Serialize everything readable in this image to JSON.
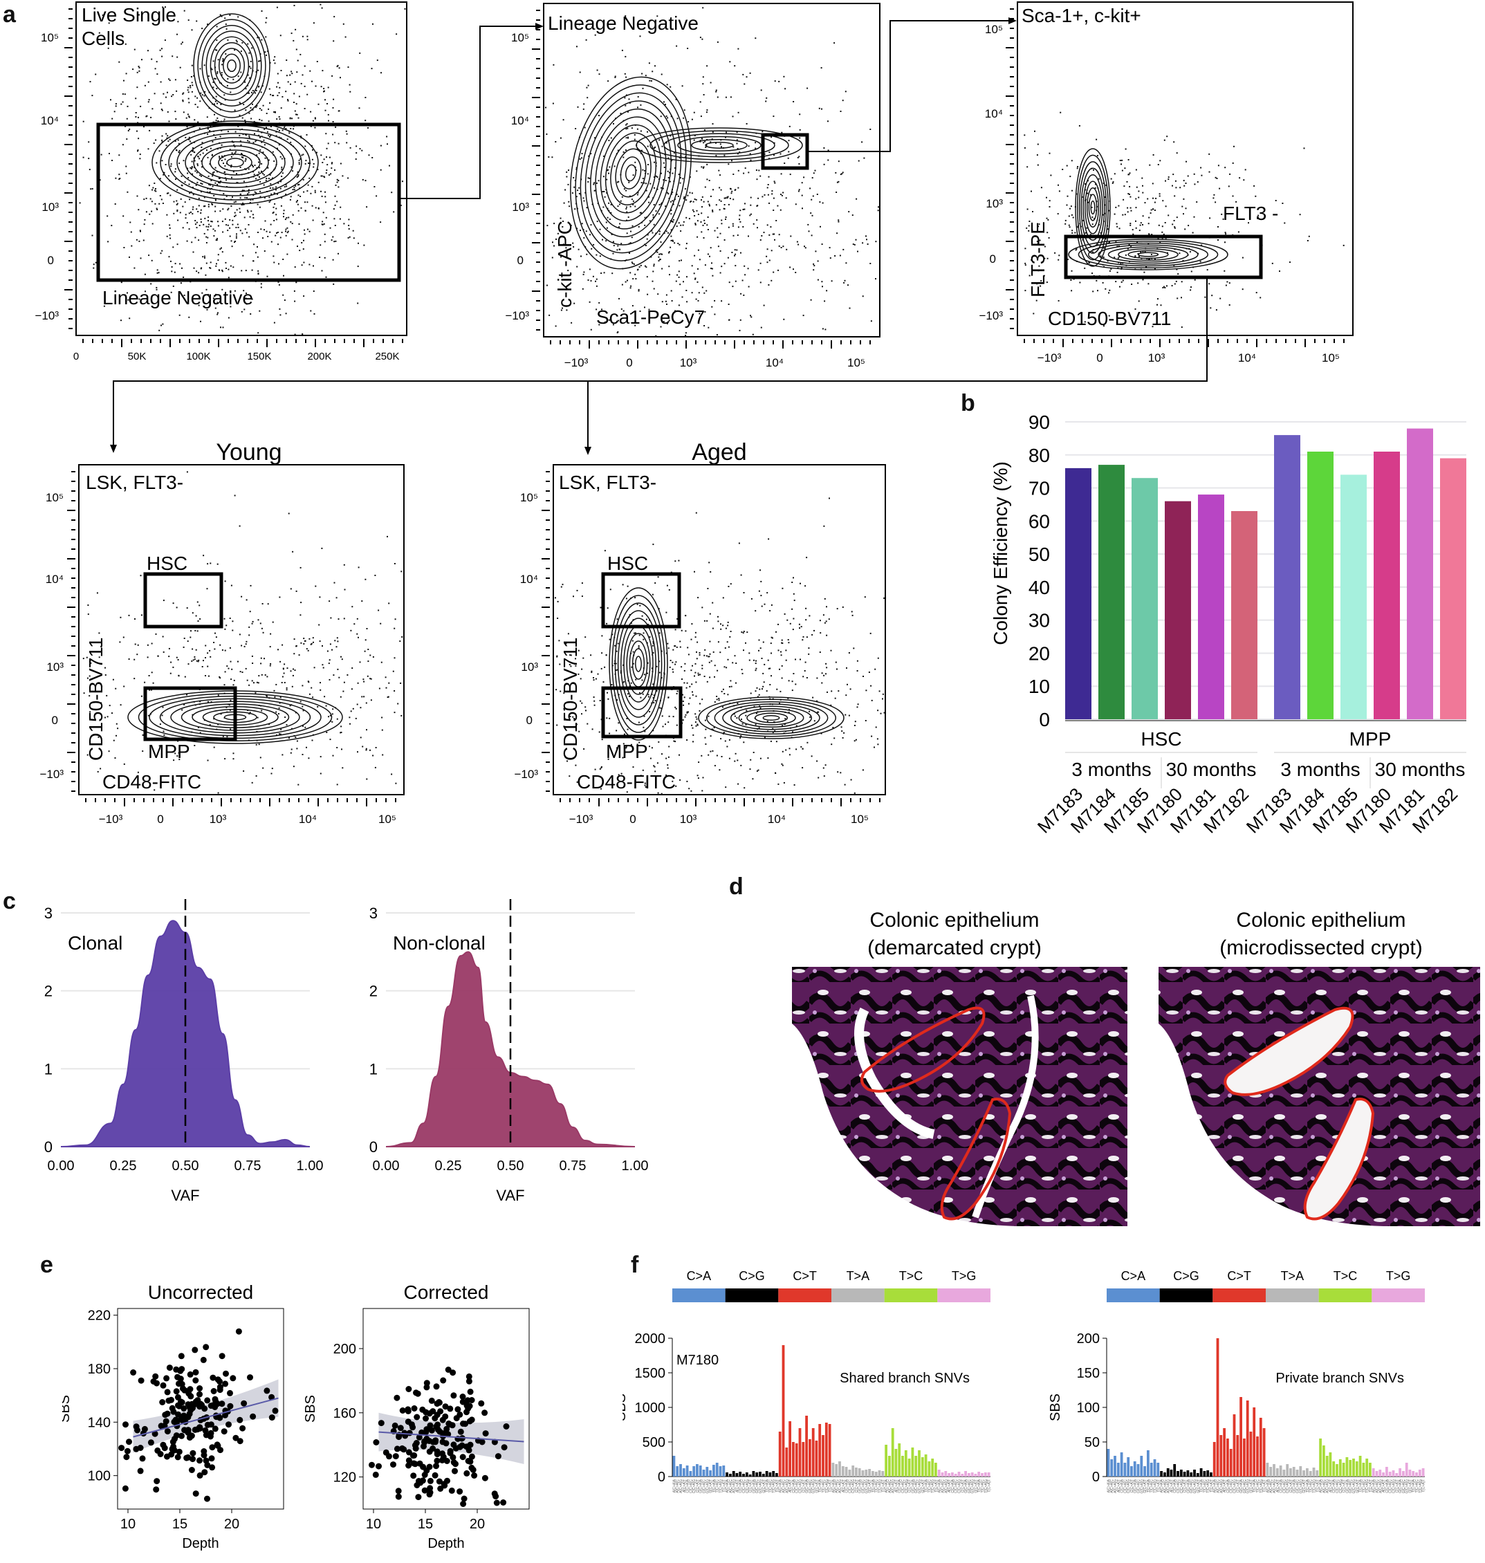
{
  "panel_letters": [
    "a",
    "b",
    "c",
    "d",
    "e",
    "f"
  ],
  "panel_a": {
    "plots": [
      {
        "gate_title": "Live Single\nCells",
        "gate_label": "Lineage Negative",
        "x_ticks": [
          "0",
          "50K",
          "100K",
          "150K",
          "200K",
          "250K"
        ],
        "y_ticks": [
          "10⁵",
          "10⁴",
          "10³",
          "0",
          "−10³"
        ]
      },
      {
        "gate_title": "Lineage Negative",
        "xlabel": "Sca1-PeCy7",
        "ylabel": "c-kit -APC",
        "x_ticks": [
          "−10³",
          "0",
          "10³",
          "10⁴",
          "10⁵"
        ],
        "y_ticks": [
          "10⁵",
          "10⁴",
          "10³",
          "0",
          "−10³"
        ]
      },
      {
        "gate_title": "Sca-1+, c-kit+",
        "gate_label": "FLT3 -",
        "xlabel": "CD150-BV711",
        "ylabel": "FLT3-PE",
        "x_ticks": [
          "−10³",
          "0",
          "10³",
          "10⁴",
          "10⁵"
        ],
        "y_ticks": [
          "10⁵",
          "10⁴",
          "10³",
          "0",
          "−10³"
        ]
      },
      {
        "title": "Young",
        "gate_title": "LSK, FLT3-",
        "hsc": "HSC",
        "mpp": "MPP",
        "xlabel": "CD48-FITC",
        "ylabel": "CD150-BV711",
        "x_ticks": [
          "−10³",
          "0",
          "10³",
          "10⁴",
          "10⁵"
        ],
        "y_ticks": [
          "10⁵",
          "10⁴",
          "10³",
          "0",
          "−10³"
        ]
      },
      {
        "title": "Aged",
        "gate_title": "LSK, FLT3-",
        "hsc": "HSC",
        "mpp": "MPP",
        "xlabel": "CD48-FITC",
        "ylabel": "CD150-BV711",
        "x_ticks": [
          "−10³",
          "0",
          "10³",
          "10⁴",
          "10⁵"
        ],
        "y_ticks": [
          "10⁵",
          "10⁴",
          "10³",
          "0",
          "−10³"
        ]
      }
    ]
  },
  "chart_data": [
    {
      "panel": "b",
      "type": "bar",
      "ylabel": "Colony Efficiency (%)",
      "ylim": [
        0,
        90
      ],
      "y_ticks": [
        0,
        10,
        20,
        30,
        40,
        50,
        60,
        70,
        80,
        90
      ],
      "grid": true,
      "categories": [
        "M7183",
        "M7184",
        "M7185",
        "M7180",
        "M7181",
        "M7182",
        "M7183",
        "M7184",
        "M7185",
        "M7180",
        "M7181",
        "M7182"
      ],
      "values": [
        76,
        77,
        73,
        66,
        68,
        63,
        86,
        81,
        74,
        81,
        88,
        79
      ],
      "colors": [
        "#3e2a93",
        "#2e8b3e",
        "#6dc9a8",
        "#8f2357",
        "#b845c4",
        "#d46378",
        "#6b5cc0",
        "#5dd63a",
        "#a6f0dd",
        "#d63c8a",
        "#d36bc9",
        "#f07898"
      ],
      "groups": [
        {
          "label": "HSC",
          "subgroups": [
            "3 months",
            "30 months"
          ]
        },
        {
          "label": "MPP",
          "subgroups": [
            "3 months",
            "30 months"
          ]
        }
      ]
    },
    {
      "panel": "c-left",
      "type": "area",
      "label": "Clonal",
      "xlabel": "VAF",
      "xlim": [
        0,
        1
      ],
      "ylim": [
        0,
        3
      ],
      "x_ticks": [
        "0.00",
        "0.25",
        "0.50",
        "0.75",
        "1.00"
      ],
      "y_ticks": [
        "0",
        "1",
        "2",
        "3"
      ],
      "vline": 0.5,
      "color": "#5b3ea6",
      "x": [
        0.0,
        0.1,
        0.2,
        0.25,
        0.3,
        0.35,
        0.4,
        0.45,
        0.5,
        0.55,
        0.6,
        0.65,
        0.7,
        0.75,
        0.8,
        0.85,
        0.9,
        0.95,
        1.0
      ],
      "y": [
        0.0,
        0.02,
        0.3,
        0.8,
        1.5,
        2.2,
        2.7,
        2.9,
        2.75,
        2.3,
        2.15,
        1.45,
        0.6,
        0.15,
        0.04,
        0.06,
        0.09,
        0.02,
        0.0
      ]
    },
    {
      "panel": "c-right",
      "type": "area",
      "label": "Non-clonal",
      "xlabel": "VAF",
      "xlim": [
        0,
        1
      ],
      "ylim": [
        0,
        3
      ],
      "x_ticks": [
        "0.00",
        "0.25",
        "0.50",
        "0.75",
        "1.00"
      ],
      "y_ticks": [
        "0",
        "1",
        "2",
        "3"
      ],
      "vline": 0.5,
      "color": "#9a3a66",
      "x": [
        0.0,
        0.1,
        0.15,
        0.2,
        0.25,
        0.3,
        0.33,
        0.37,
        0.4,
        0.45,
        0.5,
        0.55,
        0.6,
        0.65,
        0.7,
        0.75,
        0.8,
        0.85,
        1.0
      ],
      "y": [
        0.0,
        0.05,
        0.3,
        0.9,
        1.8,
        2.45,
        2.5,
        2.3,
        1.6,
        1.15,
        0.95,
        0.9,
        0.85,
        0.8,
        0.55,
        0.25,
        0.08,
        0.03,
        0.0
      ]
    },
    {
      "panel": "e-left",
      "type": "scatter",
      "title": "Uncorrected",
      "xlabel": "Depth",
      "ylabel": "SBS",
      "xlim": [
        9,
        25
      ],
      "ylim": [
        75,
        225
      ],
      "x_ticks": [
        10,
        15,
        20
      ],
      "y_ticks": [
        100,
        140,
        180,
        220
      ],
      "trend": [
        [
          10.5,
          129
        ],
        [
          24.5,
          158
        ]
      ]
    },
    {
      "panel": "e-right",
      "type": "scatter",
      "title": "Corrected",
      "xlabel": "Depth",
      "ylabel": "SBS",
      "xlim": [
        9,
        25
      ],
      "ylim": [
        100,
        225
      ],
      "x_ticks": [
        10,
        15,
        20
      ],
      "y_ticks": [
        120,
        160,
        200
      ],
      "trend": [
        [
          10.5,
          148
        ],
        [
          24.5,
          142
        ]
      ]
    },
    {
      "panel": "f-left",
      "type": "bar",
      "sample": "M7180",
      "label": "Shared branch SNVs",
      "ylabel": "SBS",
      "ylim": [
        0,
        2000
      ],
      "y_ticks": [
        0,
        500,
        1000,
        1500,
        2000
      ],
      "classes": [
        "C>A",
        "C>G",
        "C>T",
        "T>A",
        "T>C",
        "T>G"
      ],
      "class_colors": [
        "#5b8fd1",
        "#000000",
        "#e0382b",
        "#b8b8b8",
        "#a8dd3a",
        "#e8a8dd"
      ],
      "values": [
        300,
        150,
        180,
        120,
        160,
        80,
        150,
        180,
        160,
        100,
        140,
        90,
        170,
        200,
        150,
        160,
        60,
        40,
        80,
        50,
        70,
        40,
        60,
        30,
        80,
        60,
        70,
        40,
        80,
        60,
        80,
        50,
        650,
        1900,
        420,
        800,
        500,
        480,
        700,
        500,
        880,
        540,
        700,
        520,
        760,
        600,
        780,
        760,
        200,
        180,
        220,
        150,
        140,
        100,
        160,
        130,
        120,
        90,
        100,
        110,
        80,
        70,
        90,
        80,
        460,
        300,
        700,
        400,
        480,
        300,
        380,
        260,
        420,
        300,
        380,
        280,
        320,
        220,
        260,
        200,
        100,
        60,
        80,
        50,
        60,
        40,
        70,
        40,
        80,
        50,
        60,
        40,
        70,
        50,
        60,
        60
      ]
    },
    {
      "panel": "f-right",
      "type": "bar",
      "label": "Private branch SNVs",
      "ylabel": "SBS",
      "ylim": [
        0,
        200
      ],
      "y_ticks": [
        0,
        50,
        100,
        150,
        200
      ],
      "classes": [
        "C>A",
        "C>G",
        "C>T",
        "T>A",
        "T>C",
        "T>G"
      ],
      "class_colors": [
        "#5b8fd1",
        "#000000",
        "#e0382b",
        "#b8b8b8",
        "#a8dd3a",
        "#e8a8dd"
      ],
      "values": [
        40,
        25,
        30,
        20,
        35,
        20,
        28,
        15,
        22,
        18,
        30,
        15,
        38,
        20,
        25,
        20,
        8,
        6,
        12,
        10,
        18,
        8,
        10,
        7,
        9,
        6,
        10,
        5,
        12,
        8,
        9,
        6,
        50,
        200,
        60,
        70,
        55,
        40,
        90,
        60,
        115,
        55,
        110,
        65,
        100,
        58,
        85,
        70,
        20,
        14,
        18,
        12,
        16,
        10,
        18,
        12,
        14,
        10,
        15,
        9,
        12,
        8,
        13,
        9,
        55,
        45,
        30,
        35,
        22,
        18,
        25,
        20,
        28,
        24,
        26,
        22,
        30,
        20,
        26,
        20,
        12,
        8,
        10,
        6,
        14,
        7,
        9,
        5,
        12,
        8,
        20,
        10,
        8,
        6,
        10,
        12
      ]
    }
  ],
  "panel_d": {
    "images": [
      {
        "title_line1": "Colonic epithelium",
        "title_line2": "(demarcated crypt)"
      },
      {
        "title_line1": "Colonic epithelium",
        "title_line2": "(microdissected crypt)"
      }
    ]
  },
  "mutation_labels": [
    "A[C>A]A",
    "A[C>A]C",
    "A[C>A]G",
    "A[C>A]T",
    "C[C>A]A",
    "C[C>A]C",
    "C[C>A]G",
    "C[C>A]T",
    "G[C>A]A",
    "G[C>A]C",
    "G[C>A]G",
    "G[C>A]T",
    "T[C>A]A",
    "T[C>A]C",
    "T[C>A]G",
    "T[C>A]T"
  ]
}
